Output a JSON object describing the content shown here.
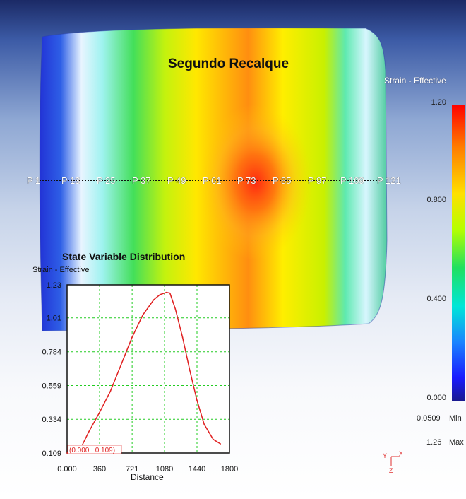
{
  "window": {
    "title": "Segundo Recalque",
    "point_labels": [
      "P 1",
      "P 13",
      "P 25",
      "P 37",
      "P 49",
      "P 61",
      "P 73",
      "P 85",
      "P 97",
      "P 109",
      "P 121"
    ]
  },
  "legend": {
    "title": "Strain - Effective",
    "ticks": [
      "1.20",
      "0.800",
      "0.400",
      "0.000"
    ],
    "min_value": "0.0509",
    "min_label": "Min",
    "max_value": "1.26",
    "max_label": "Max",
    "colors": [
      "#ff0000",
      "#ff7a00",
      "#ffe000",
      "#b6ff00",
      "#20e060",
      "#00e6d8",
      "#1a84ff",
      "#1a1aff",
      "#1a1a8c"
    ]
  },
  "triad": {
    "x": "X",
    "y": "Y",
    "z": "Z"
  },
  "chart_data": {
    "type": "line",
    "title": "State Variable Distribution",
    "ylabel": "Strain - Effective",
    "xlabel": "Distance",
    "xlim": [
      0,
      1800
    ],
    "ylim": [
      0.109,
      1.23
    ],
    "x_ticks": [
      "0.000",
      "360",
      "721",
      "1080",
      "1440",
      "1800"
    ],
    "y_ticks": [
      "0.109",
      "0.334",
      "0.559",
      "0.784",
      "1.01",
      "1.23"
    ],
    "grid": true,
    "series": [
      {
        "color": "#e02020",
        "x": [
          0,
          150,
          240,
          360,
          480,
          600,
          720,
          840,
          960,
          1030,
          1080,
          1100,
          1140,
          1200,
          1280,
          1360,
          1440,
          1520,
          1620,
          1700
        ],
        "y": [
          0.109,
          0.14,
          0.25,
          0.38,
          0.52,
          0.7,
          0.88,
          1.03,
          1.13,
          1.165,
          1.175,
          1.18,
          1.175,
          1.07,
          0.88,
          0.66,
          0.46,
          0.3,
          0.2,
          0.17
        ]
      }
    ],
    "annotation": "(0.000 , 0.109)"
  }
}
